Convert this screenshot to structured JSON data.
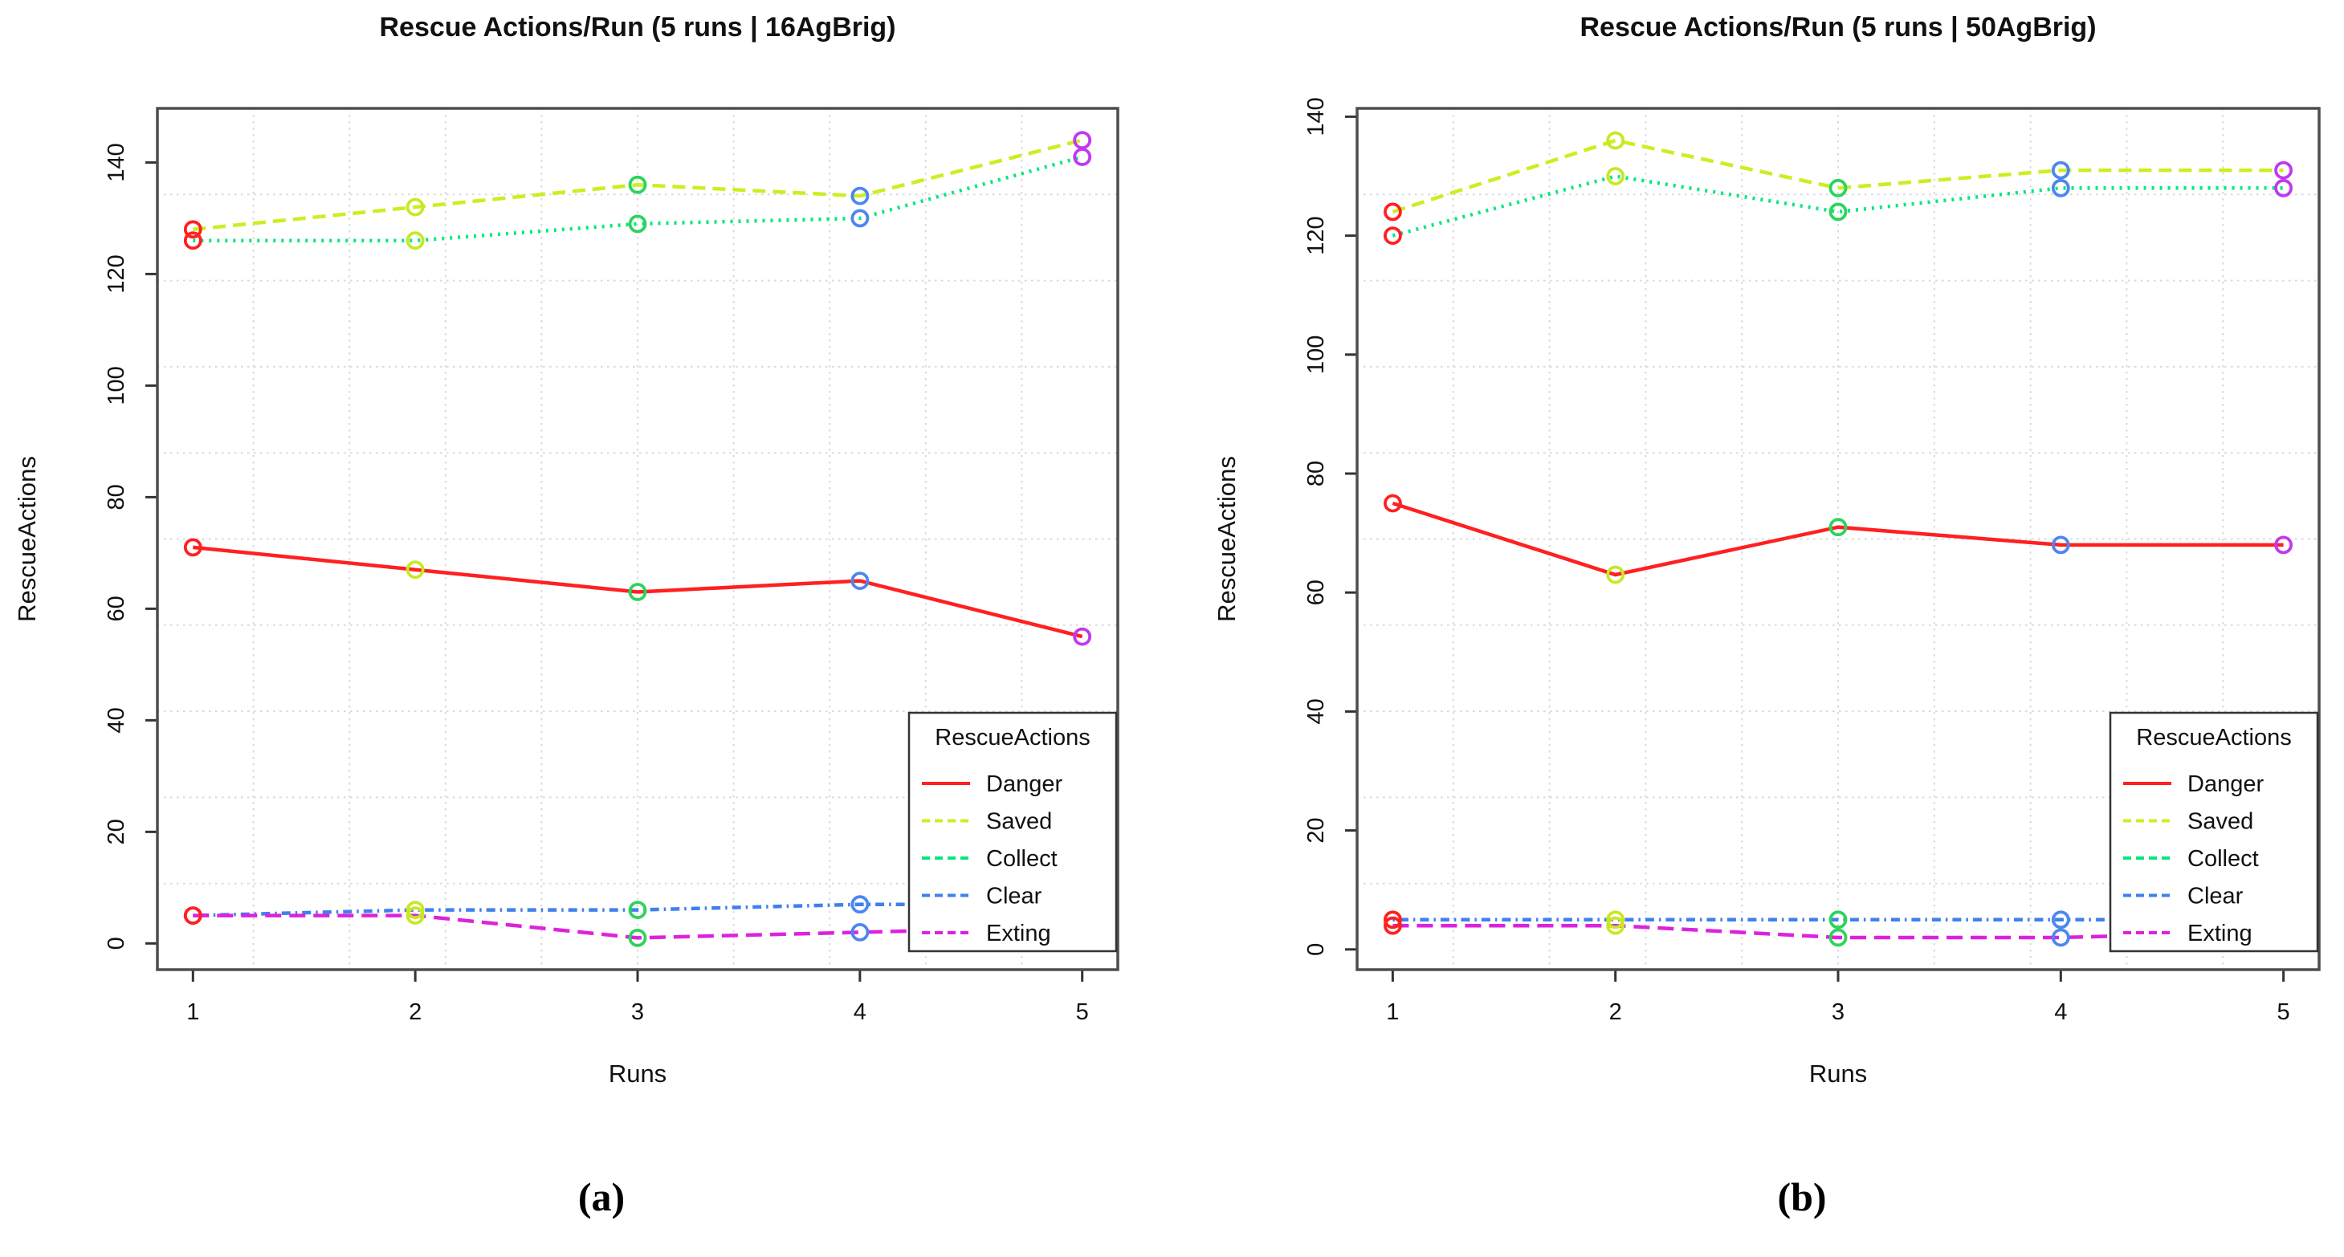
{
  "figure": {
    "background": "#ffffff",
    "axis_color": "#4d4d4d",
    "grid_color": "#d9d9d9",
    "text_color": "#111111"
  },
  "chart_data": [
    {
      "type": "line",
      "title": "Rescue Actions/Run  (5 runs | 16AgBrig)",
      "xlabel": "Runs",
      "ylabel": "RescueActions",
      "caption": "(a)",
      "x": [
        1,
        2,
        3,
        4,
        5
      ],
      "x_tick_labels": [
        "1",
        "2",
        "3",
        "4",
        "5"
      ],
      "y_ticks": [
        0,
        20,
        40,
        60,
        80,
        100,
        120,
        140
      ],
      "xlim": [
        0.84,
        5.16
      ],
      "ylim": [
        -4.7,
        149.7
      ],
      "grid": "light dotted grid, 9 interior lines each direction",
      "legend": {
        "title": "RescueActions",
        "position": "bottom-right",
        "entries": [
          "Danger",
          "Saved",
          "Collect",
          "Clear",
          "Exting"
        ]
      },
      "series": [
        {
          "name": "Danger",
          "color": "#ff2020",
          "linetype": "solid",
          "values": [
            71,
            67,
            63,
            65,
            55
          ]
        },
        {
          "name": "Saved",
          "color": "#ccee22",
          "linetype": "dashed",
          "values": [
            128,
            132,
            136,
            134,
            144
          ]
        },
        {
          "name": "Collect",
          "color": "#00e87c",
          "linetype": "dotted",
          "values": [
            126,
            126,
            129,
            130,
            141
          ]
        },
        {
          "name": "Clear",
          "color": "#4080ee",
          "linetype": "dashdot",
          "values": [
            5,
            6,
            6,
            7,
            7
          ]
        },
        {
          "name": "Exting",
          "color": "#dd22dd",
          "linetype": "longdash",
          "values": [
            5,
            5,
            1,
            2,
            3
          ]
        }
      ],
      "marker_colors_by_run": [
        "#ff2020",
        "#c8e822",
        "#2cd45c",
        "#4d86f0",
        "#c238ee"
      ]
    },
    {
      "type": "line",
      "title": "Rescue Actions/Run  (5 runs | 50AgBrig)",
      "xlabel": "Runs",
      "ylabel": "RescueActions",
      "caption": "(b)",
      "x": [
        1,
        2,
        3,
        4,
        5
      ],
      "x_tick_labels": [
        "1",
        "2",
        "3",
        "4",
        "5"
      ],
      "y_ticks": [
        0,
        20,
        40,
        60,
        80,
        100,
        120,
        140
      ],
      "xlim": [
        0.84,
        5.16
      ],
      "ylim": [
        -3.4,
        141.4
      ],
      "grid": "light dotted grid, 9 interior lines each direction",
      "legend": {
        "title": "RescueActions",
        "position": "bottom-right",
        "entries": [
          "Danger",
          "Saved",
          "Collect",
          "Clear",
          "Exting"
        ]
      },
      "series": [
        {
          "name": "Danger",
          "color": "#ff2020",
          "linetype": "solid",
          "values": [
            75,
            63,
            71,
            68,
            68
          ]
        },
        {
          "name": "Saved",
          "color": "#ccee22",
          "linetype": "dashed",
          "values": [
            124,
            136,
            128,
            131,
            131
          ]
        },
        {
          "name": "Collect",
          "color": "#00e87c",
          "linetype": "dotted",
          "values": [
            120,
            130,
            124,
            128,
            128
          ]
        },
        {
          "name": "Clear",
          "color": "#4080ee",
          "linetype": "dashdot",
          "values": [
            5,
            5,
            5,
            5,
            5
          ]
        },
        {
          "name": "Exting",
          "color": "#dd22dd",
          "linetype": "longdash",
          "values": [
            4,
            4,
            2,
            2,
            3
          ]
        }
      ],
      "marker_colors_by_run": [
        "#ff2020",
        "#c8e822",
        "#2cd45c",
        "#4d86f0",
        "#c238ee"
      ]
    }
  ]
}
